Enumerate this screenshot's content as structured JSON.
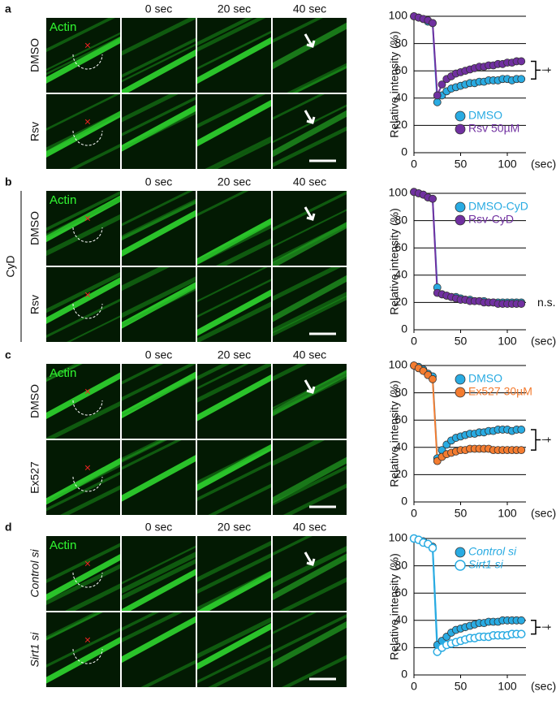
{
  "panels": [
    {
      "letter": "a",
      "channel": "Actin",
      "times": [
        "0 sec",
        "20 sec",
        "40 sec"
      ],
      "rows": [
        "DMSO",
        "Rsv"
      ]
    },
    {
      "letter": "b",
      "channel": "Actin",
      "times": [
        "0 sec",
        "20 sec",
        "40 sec"
      ],
      "rows": [
        "DMSO",
        "Rsv"
      ],
      "group": "CyD"
    },
    {
      "letter": "c",
      "channel": "Actin",
      "times": [
        "0 sec",
        "20 sec",
        "40 sec"
      ],
      "rows": [
        "DMSO",
        "Ex527"
      ]
    },
    {
      "letter": "d",
      "channel": "Actin",
      "times": [
        "0 sec",
        "20 sec",
        "40 sec"
      ],
      "rows": [
        "Control si",
        "Sirt1 si"
      ],
      "italic": true
    }
  ],
  "chart_data": [
    {
      "type": "line",
      "ylabel": "Relative intensity (%)",
      "xlabel": "(sec)",
      "x": [
        0,
        5,
        10,
        15,
        20,
        25,
        30,
        35,
        40,
        45,
        50,
        55,
        60,
        65,
        70,
        75,
        80,
        85,
        90,
        95,
        100,
        105,
        110,
        115
      ],
      "xlim": [
        0,
        120
      ],
      "xticks": [
        0,
        50,
        100
      ],
      "ylim": [
        0,
        100
      ],
      "yticks": [
        0,
        20,
        40,
        60,
        80,
        100
      ],
      "grid": true,
      "legend": "lower right",
      "annotation": "†",
      "series": [
        {
          "name": "DMSO",
          "color": "#29abe2",
          "values": [
            100,
            99,
            98,
            96,
            95,
            37,
            42,
            45,
            47,
            48,
            49,
            50,
            51,
            51,
            52,
            52,
            53,
            53,
            53,
            54,
            54,
            53,
            54,
            54
          ]
        },
        {
          "name": "Rsv 50µM",
          "color": "#7030a0",
          "values": [
            100,
            99,
            98,
            97,
            95,
            42,
            50,
            54,
            56,
            58,
            59,
            60,
            61,
            62,
            63,
            63,
            64,
            64,
            65,
            65,
            66,
            66,
            67,
            67
          ]
        }
      ]
    },
    {
      "type": "line",
      "ylabel": "Relative intensity (%)",
      "xlabel": "(sec)",
      "x": [
        0,
        5,
        10,
        15,
        20,
        25,
        30,
        35,
        40,
        45,
        50,
        55,
        60,
        65,
        70,
        75,
        80,
        85,
        90,
        95,
        100,
        105,
        110,
        115
      ],
      "xlim": [
        0,
        120
      ],
      "xticks": [
        0,
        50,
        100
      ],
      "ylim": [
        0,
        100
      ],
      "yticks": [
        0,
        20,
        40,
        60,
        80,
        100
      ],
      "grid": true,
      "legend": "upper right",
      "annotation": "n.s.",
      "series": [
        {
          "name": "DMSO-CyD",
          "color": "#29abe2",
          "values": [
            101,
            100,
            99,
            97,
            96,
            31,
            26,
            25,
            24,
            24,
            23,
            22,
            22,
            21,
            21,
            21,
            20,
            20,
            20,
            20,
            20,
            20,
            20,
            20
          ]
        },
        {
          "name": "Rsv-CyD",
          "color": "#7030a0",
          "values": [
            101,
            100,
            99,
            97,
            96,
            27,
            26,
            25,
            24,
            23,
            22,
            22,
            21,
            21,
            21,
            20,
            20,
            20,
            19,
            19,
            19,
            19,
            19,
            19
          ]
        }
      ]
    },
    {
      "type": "line",
      "ylabel": "Relative intensity (%)",
      "xlabel": "(sec)",
      "x": [
        0,
        5,
        10,
        15,
        20,
        25,
        30,
        35,
        40,
        45,
        50,
        55,
        60,
        65,
        70,
        75,
        80,
        85,
        90,
        95,
        100,
        105,
        110,
        115
      ],
      "xlim": [
        0,
        120
      ],
      "xticks": [
        0,
        50,
        100
      ],
      "ylim": [
        0,
        100
      ],
      "yticks": [
        0,
        20,
        40,
        60,
        80,
        100
      ],
      "grid": true,
      "legend": "upper right",
      "annotation": "†",
      "series": [
        {
          "name": "DMSO",
          "color": "#29abe2",
          "values": [
            100,
            99,
            97,
            94,
            92,
            32,
            38,
            42,
            45,
            47,
            48,
            49,
            50,
            50,
            51,
            51,
            52,
            52,
            53,
            53,
            53,
            52,
            53,
            53
          ]
        },
        {
          "name": "Ex527 30µM",
          "color": "#f47c30",
          "values": [
            100,
            98,
            96,
            93,
            90,
            30,
            33,
            35,
            36,
            37,
            38,
            38,
            39,
            39,
            39,
            39,
            39,
            38,
            38,
            38,
            38,
            38,
            38,
            38
          ]
        }
      ]
    },
    {
      "type": "line",
      "ylabel": "Relative intensity (%)",
      "xlabel": "(sec)",
      "x": [
        0,
        5,
        10,
        15,
        20,
        25,
        30,
        35,
        40,
        45,
        50,
        55,
        60,
        65,
        70,
        75,
        80,
        85,
        90,
        95,
        100,
        105,
        110,
        115
      ],
      "xlim": [
        0,
        120
      ],
      "xticks": [
        0,
        50,
        100
      ],
      "ylim": [
        0,
        100
      ],
      "yticks": [
        0,
        20,
        40,
        60,
        80,
        100
      ],
      "grid": true,
      "legend": "upper right",
      "annotation": "†",
      "italic_legend": true,
      "series": [
        {
          "name": "Control si",
          "color": "#29abe2",
          "values": [
            100,
            99,
            98,
            96,
            94,
            22,
            25,
            28,
            31,
            33,
            34,
            35,
            36,
            37,
            38,
            38,
            39,
            39,
            39,
            40,
            40,
            40,
            40,
            40
          ]
        },
        {
          "name": "Sirt1 si",
          "color": "#29abe2",
          "open": true,
          "values": [
            100,
            99,
            97,
            96,
            93,
            17,
            20,
            22,
            23,
            24,
            25,
            26,
            27,
            27,
            28,
            28,
            28,
            29,
            29,
            29,
            29,
            30,
            30,
            30
          ]
        }
      ]
    }
  ]
}
